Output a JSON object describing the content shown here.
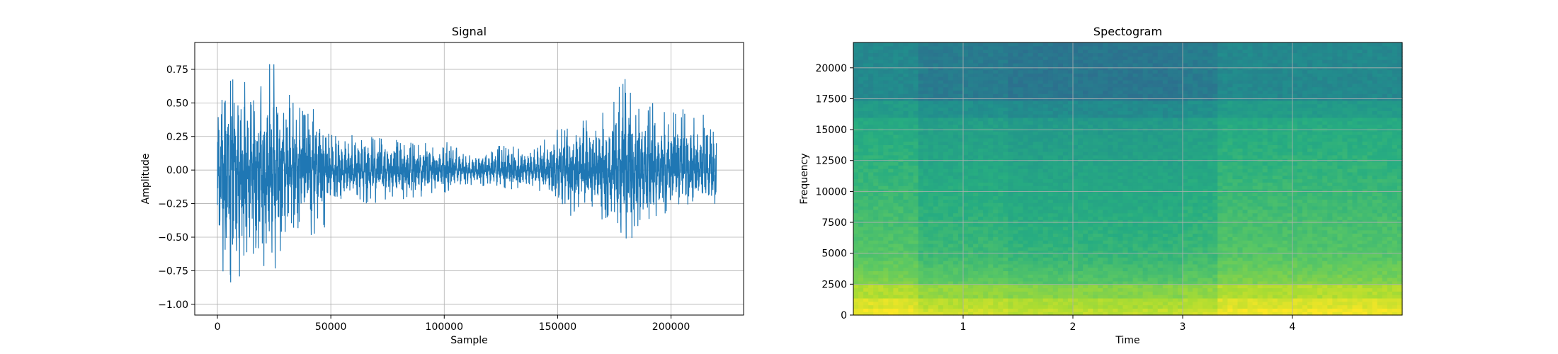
{
  "chart_data": [
    {
      "type": "line",
      "title": "Signal",
      "xlabel": "Sample",
      "ylabel": "Amplitude",
      "xlim": [
        -10000,
        232000
      ],
      "ylim": [
        -1.08,
        0.95
      ],
      "xticks": [
        0,
        50000,
        100000,
        150000,
        200000
      ],
      "yticks": [
        -1.0,
        -0.75,
        -0.5,
        -0.25,
        0.0,
        0.25,
        0.5,
        0.75
      ],
      "xtick_labels": [
        "0",
        "50000",
        "100000",
        "150000",
        "200000"
      ],
      "ytick_labels": [
        "−1.00",
        "−0.75",
        "−0.50",
        "−0.25",
        "0.00",
        "0.25",
        "0.50",
        "0.75"
      ],
      "grid": true,
      "series_color": "#1f77b4",
      "envelope": {
        "x": [
          0,
          3000,
          8000,
          12000,
          18000,
          25000,
          30000,
          38000,
          45000,
          50000,
          60000,
          75000,
          90000,
          100000,
          110000,
          120000,
          130000,
          140000,
          145000,
          155000,
          165000,
          175000,
          180000,
          190000,
          200000,
          210000,
          220000
        ],
        "upper": [
          0.55,
          0.86,
          0.7,
          0.68,
          0.7,
          0.83,
          0.6,
          0.45,
          0.55,
          0.28,
          0.28,
          0.25,
          0.2,
          0.23,
          0.14,
          0.18,
          0.18,
          0.16,
          0.28,
          0.35,
          0.45,
          0.55,
          0.7,
          0.52,
          0.5,
          0.45,
          0.42
        ],
        "lower": [
          -0.9,
          -0.65,
          -0.99,
          -0.62,
          -0.68,
          -0.8,
          -0.55,
          -0.4,
          -0.62,
          -0.22,
          -0.25,
          -0.24,
          -0.2,
          -0.18,
          -0.12,
          -0.12,
          -0.15,
          -0.15,
          -0.25,
          -0.35,
          -0.3,
          -0.45,
          -0.57,
          -0.4,
          -0.3,
          -0.3,
          -0.28
        ]
      }
    },
    {
      "type": "heatmap",
      "title": "Spectogram",
      "xlabel": "Time",
      "ylabel": "Frequency",
      "xlim": [
        0,
        5
      ],
      "ylim": [
        0,
        22050
      ],
      "xticks": [
        1,
        2,
        3,
        4
      ],
      "yticks": [
        0,
        2500,
        5000,
        7500,
        10000,
        12500,
        15000,
        17500,
        20000
      ],
      "xtick_labels": [
        "1",
        "2",
        "3",
        "4"
      ],
      "ytick_labels": [
        "0",
        "2500",
        "5000",
        "7500",
        "10000",
        "12500",
        "15000",
        "17500",
        "20000"
      ],
      "grid": true,
      "colormap": "viridis"
    }
  ]
}
